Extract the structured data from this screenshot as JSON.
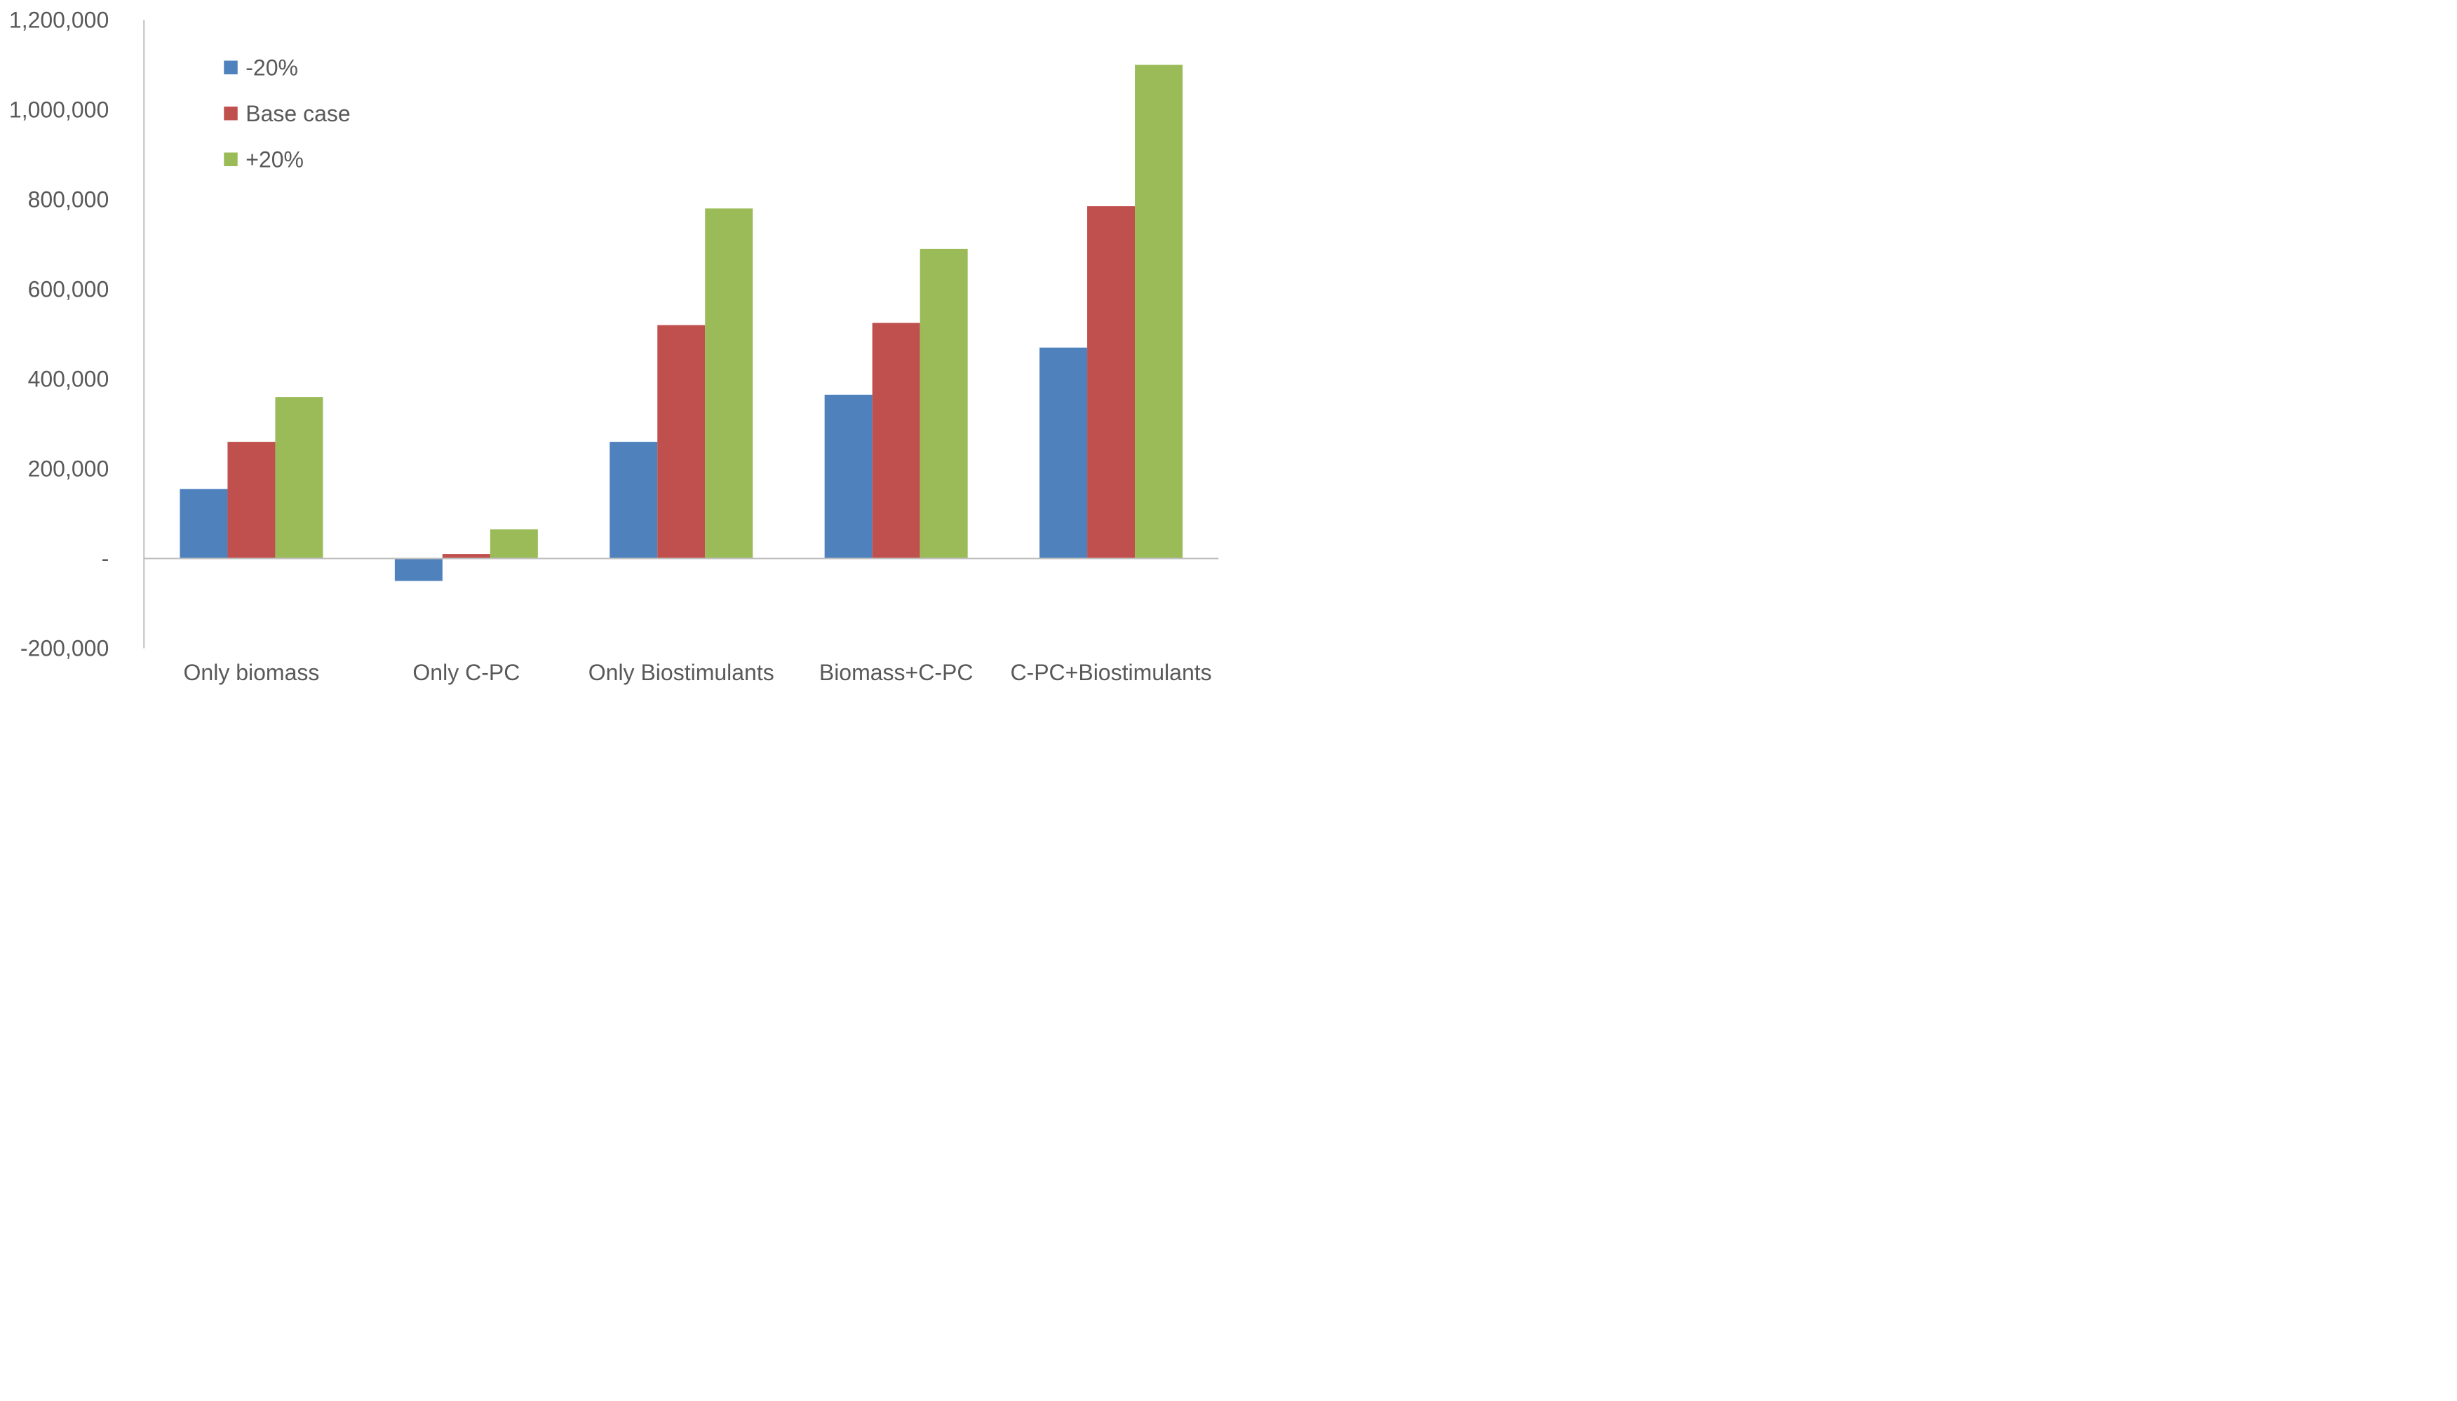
{
  "chart_data": {
    "type": "bar",
    "title": "",
    "categories": [
      "Only biomass",
      "Only C-PC",
      "Only Biostimulants",
      "Biomass+C-PC",
      "C-PC+Biostimulants"
    ],
    "series": [
      {
        "name": "-20%",
        "color": "#4F81BD",
        "values": [
          155000,
          -50000,
          260000,
          365000,
          470000
        ]
      },
      {
        "name": "Base case",
        "color": "#C0504D",
        "values": [
          260000,
          10000,
          520000,
          525000,
          785000
        ]
      },
      {
        "name": "+20%",
        "color": "#9BBB59",
        "values": [
          360000,
          65000,
          780000,
          690000,
          1100000
        ]
      }
    ],
    "y_axis": {
      "min": -200000,
      "max": 1200000,
      "step": 200000,
      "tick_labels": [
        "-200,000",
        "-",
        "200,000",
        "400,000",
        "600,000",
        "800,000",
        "1,000,000",
        "1,200,000"
      ]
    },
    "legend": {
      "position": "top-left-inside",
      "entries": [
        "-20%",
        "Base case",
        "+20%"
      ]
    },
    "grid": false,
    "axis_color": "#BFBFBF",
    "text_color": "#595959",
    "background_color": "#FFFFFF"
  }
}
